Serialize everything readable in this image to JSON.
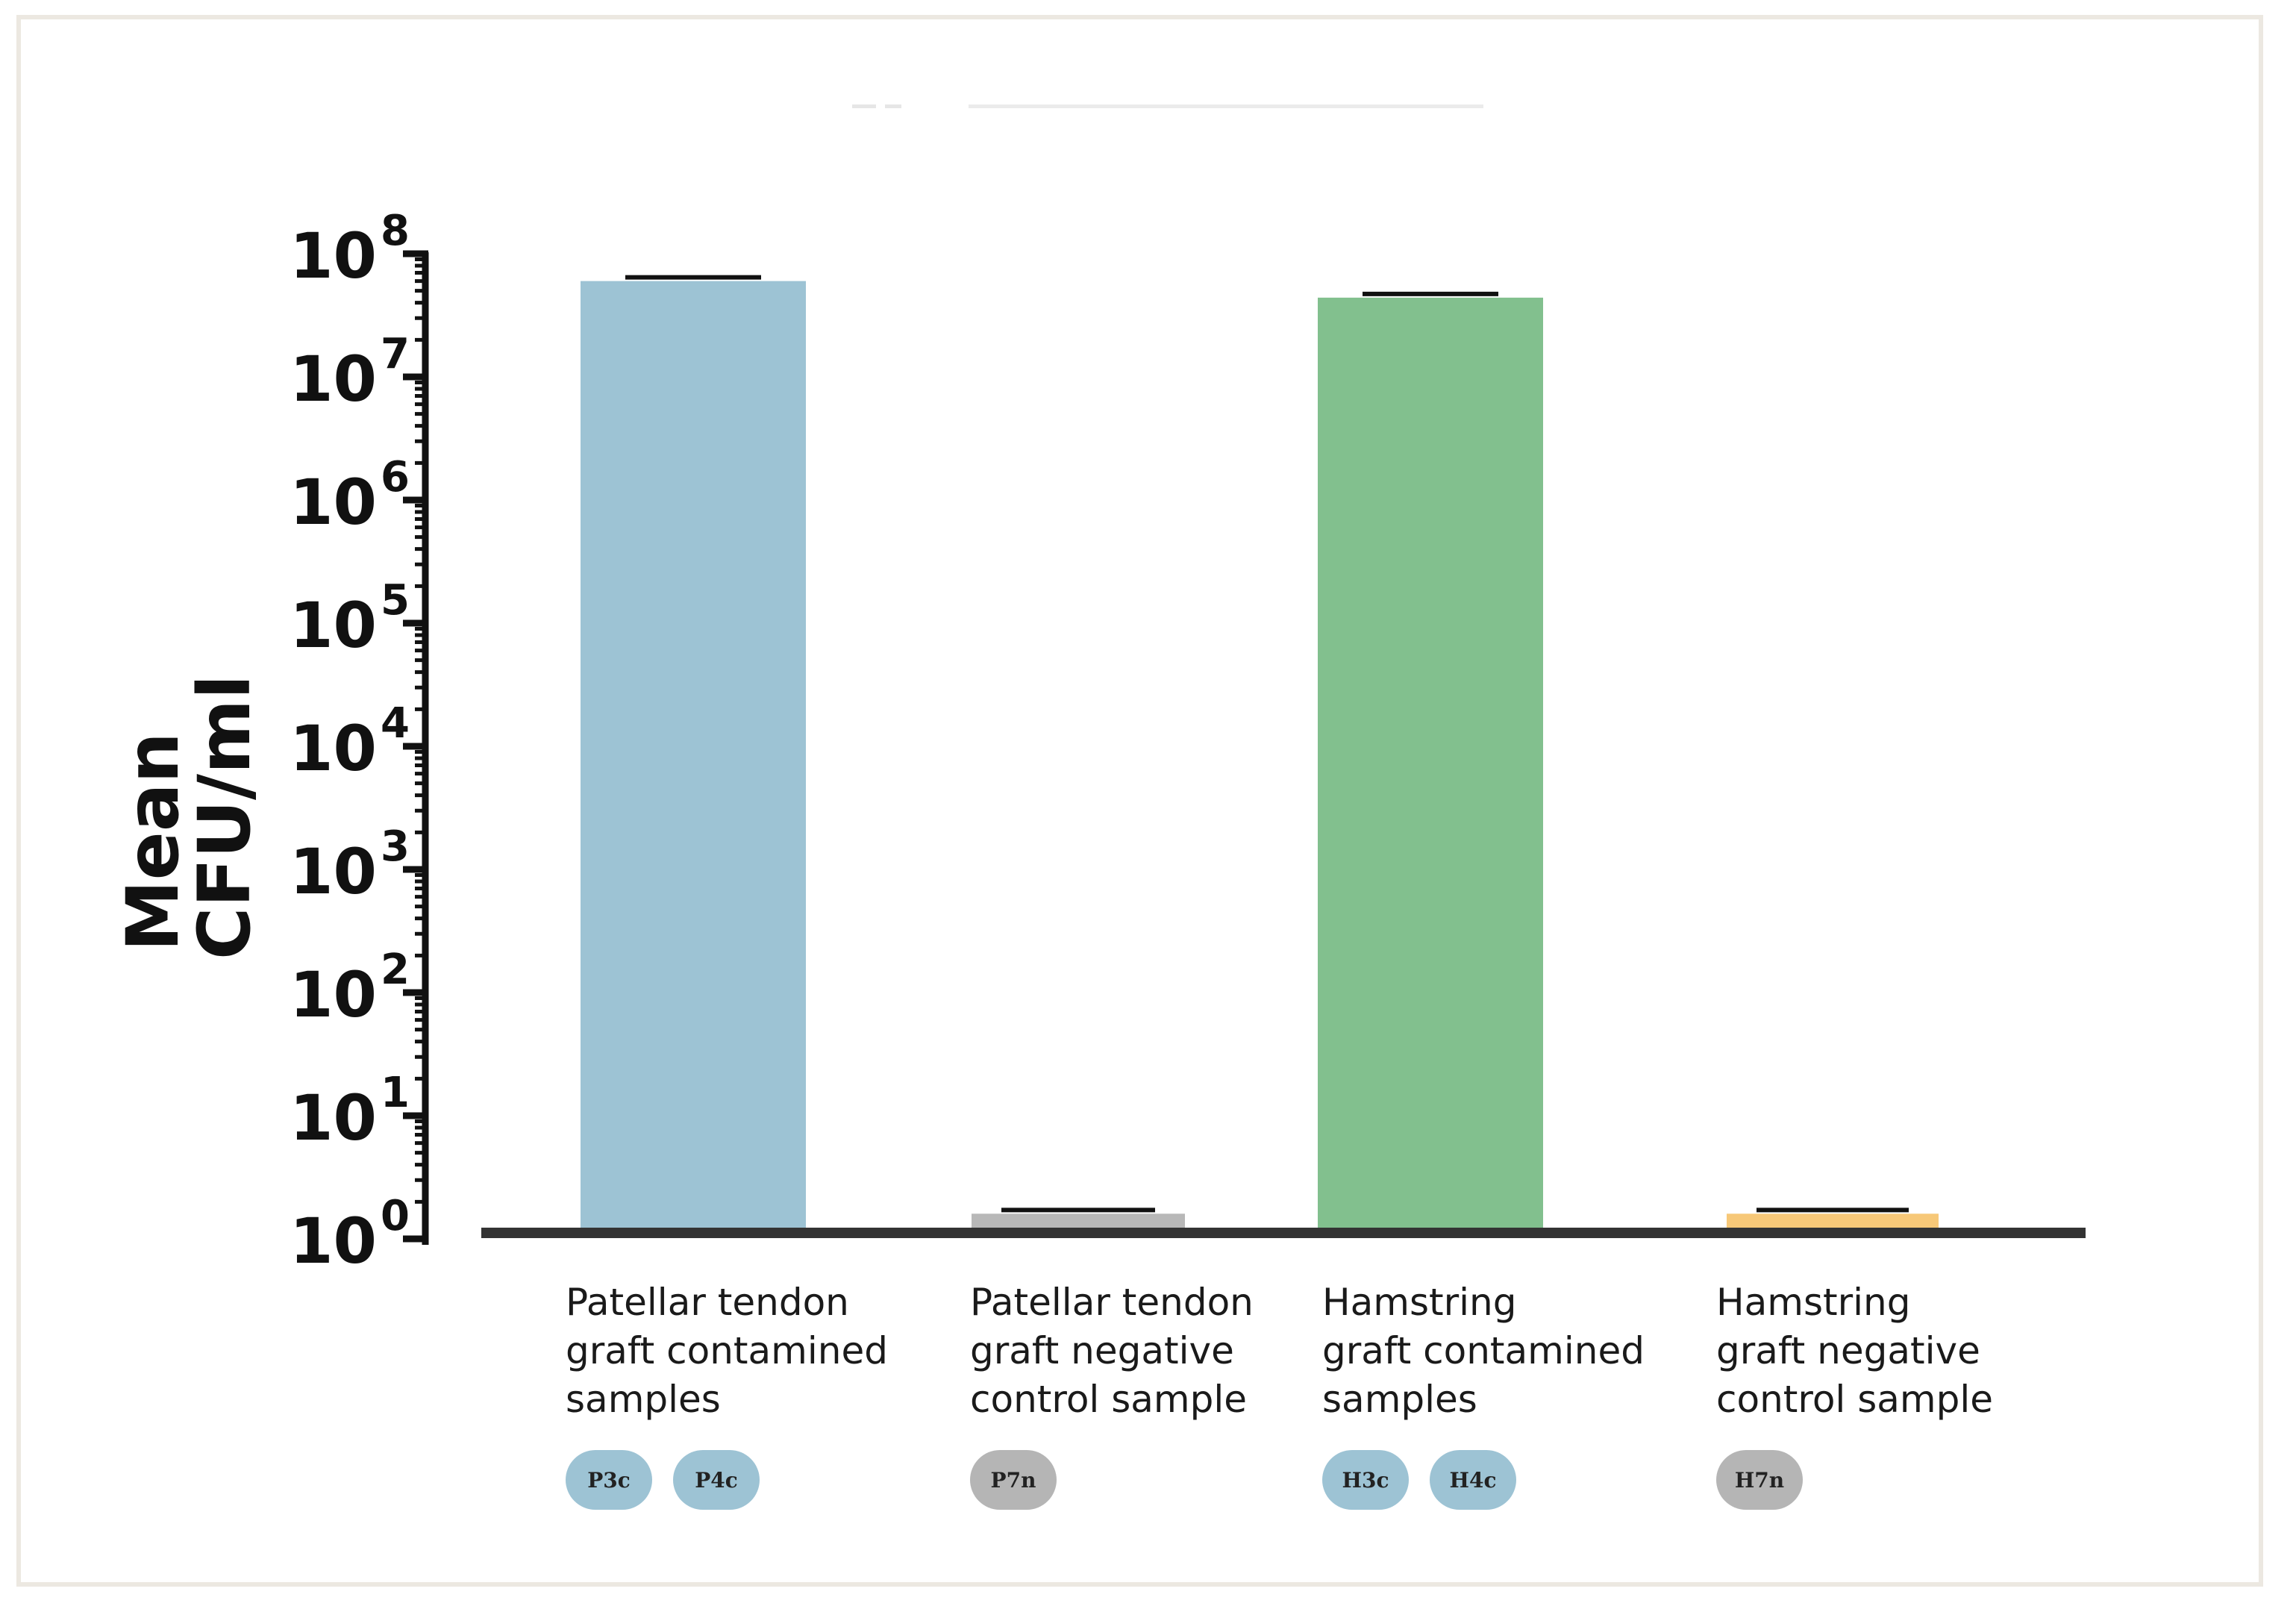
{
  "chart_data": {
    "type": "bar",
    "ylabel": [
      "Mean",
      "CFU/ml"
    ],
    "yscale": "log",
    "ylim": [
      1,
      100000000
    ],
    "y_ticks": [
      {
        "base": "10",
        "exp": "0",
        "value": 1
      },
      {
        "base": "10",
        "exp": "1",
        "value": 10
      },
      {
        "base": "10",
        "exp": "2",
        "value": 100
      },
      {
        "base": "10",
        "exp": "3",
        "value": 1000
      },
      {
        "base": "10",
        "exp": "4",
        "value": 10000
      },
      {
        "base": "10",
        "exp": "5",
        "value": 100000
      },
      {
        "base": "10",
        "exp": "6",
        "value": 1000000
      },
      {
        "base": "10",
        "exp": "7",
        "value": 10000000
      },
      {
        "base": "10",
        "exp": "8",
        "value": 100000000
      }
    ],
    "bars": [
      {
        "category": [
          "Patellar tendon",
          "graft contamined",
          "samples"
        ],
        "value": 60000000,
        "color": "#9dc3d4",
        "badges": [
          {
            "label": "P3c",
            "color": "#9dc3d4"
          },
          {
            "label": "P4c",
            "color": "#9dc3d4"
          }
        ]
      },
      {
        "category": [
          "Patellar tendon",
          "graft negative",
          "control sample"
        ],
        "value": 1.6,
        "color": "#b8b8b8",
        "badges": [
          {
            "label": "P7n",
            "color": "#b5b5b5"
          }
        ]
      },
      {
        "category": [
          "Hamstring",
          "graft contamined",
          "samples"
        ],
        "value": 44000000,
        "color": "#82c08e",
        "badges": [
          {
            "label": "H3c",
            "color": "#9dc3d4"
          },
          {
            "label": "H4c",
            "color": "#9dc3d4"
          }
        ]
      },
      {
        "category": [
          "Hamstring",
          "graft negative",
          "control sample"
        ],
        "value": 1.6,
        "color": "#f7c878",
        "badges": [
          {
            "label": "H7n",
            "color": "#b5b5b5"
          }
        ]
      }
    ],
    "grid": false,
    "legend": "none"
  }
}
